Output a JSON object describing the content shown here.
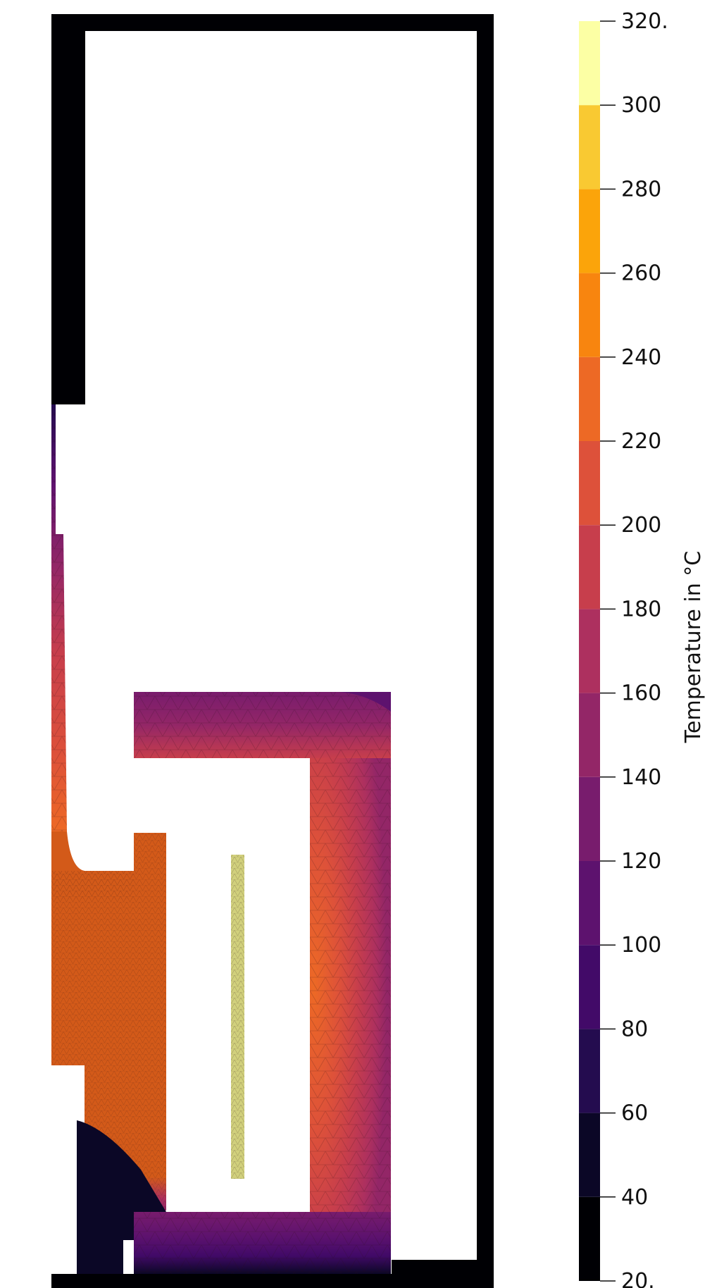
{
  "chart_data": {
    "type": "heatmap",
    "description_kind": "finite-element temperature contour plot",
    "colorbar": {
      "title": "Temperature in °C",
      "range": [
        20,
        320
      ],
      "ticks": [
        "20.",
        "40",
        "60",
        "80",
        "100",
        "120",
        "140",
        "160",
        "180",
        "200",
        "220",
        "240",
        "260",
        "280",
        "300",
        "320."
      ],
      "bands": [
        {
          "from": 20,
          "to": 40,
          "color": "#000004"
        },
        {
          "from": 40,
          "to": 60,
          "color": "#0b0726"
        },
        {
          "from": 60,
          "to": 80,
          "color": "#240c4f"
        },
        {
          "from": 80,
          "to": 100,
          "color": "#420a68"
        },
        {
          "from": 100,
          "to": 120,
          "color": "#5d126e"
        },
        {
          "from": 120,
          "to": 140,
          "color": "#781c6d"
        },
        {
          "from": 140,
          "to": 160,
          "color": "#932667"
        },
        {
          "from": 160,
          "to": 180,
          "color": "#ad305f"
        },
        {
          "from": 180,
          "to": 200,
          "color": "#c73e4c"
        },
        {
          "from": 200,
          "to": 220,
          "color": "#dd513a"
        },
        {
          "from": 220,
          "to": 240,
          "color": "#ed6925"
        },
        {
          "from": 240,
          "to": 260,
          "color": "#f8850f"
        },
        {
          "from": 260,
          "to": 280,
          "color": "#fba40a"
        },
        {
          "from": 280,
          "to": 300,
          "color": "#f9c932"
        },
        {
          "from": 300,
          "to": 320,
          "color": "#f2e661"
        },
        {
          "from": 320,
          "to": 320,
          "color": "#fcffa4"
        }
      ]
    },
    "regions": [
      {
        "name": "outer-enclosure-wall",
        "temperature": 25
      },
      {
        "name": "left-wall-lower",
        "temperature": 225
      },
      {
        "name": "inner-block-left",
        "temperature": 225
      },
      {
        "name": "heater-element",
        "temperature": 310
      },
      {
        "name": "crucible-top",
        "temperature": 150
      },
      {
        "name": "crucible-right",
        "temperature": 200
      },
      {
        "name": "crucible-bottom",
        "temperature": 90
      },
      {
        "name": "bottom-left-cold-zone",
        "temperature": 40
      }
    ]
  }
}
